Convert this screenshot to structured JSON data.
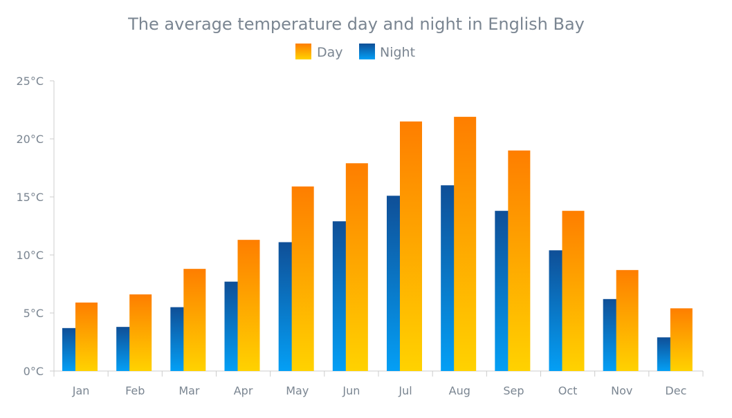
{
  "chart_data": {
    "type": "bar",
    "title": "The average temperature day and night in English Bay",
    "categories": [
      "Jan",
      "Feb",
      "Mar",
      "Apr",
      "May",
      "Jun",
      "Jul",
      "Aug",
      "Sep",
      "Oct",
      "Nov",
      "Dec"
    ],
    "series": [
      {
        "name": "Night",
        "values": [
          3.7,
          3.8,
          5.5,
          7.7,
          11.1,
          12.9,
          15.1,
          16.0,
          13.8,
          10.4,
          6.2,
          2.9
        ],
        "color_top": "#0f4f97",
        "color_bottom": "#049ff5"
      },
      {
        "name": "Day",
        "values": [
          5.9,
          6.6,
          8.8,
          11.3,
          15.9,
          17.9,
          21.5,
          21.9,
          19.0,
          13.8,
          8.7,
          5.4
        ],
        "color_top": "#fe7e00",
        "color_bottom": "#ffd200"
      }
    ],
    "ylim": [
      0,
      25
    ],
    "yticks": [
      0,
      5,
      10,
      15,
      20,
      25
    ],
    "ytick_labels": [
      "0°C",
      "5°C",
      "10°C",
      "15°C",
      "20°C",
      "25°C"
    ],
    "xlabel": "",
    "ylabel": "",
    "grid": false,
    "legend": {
      "position": "top-center",
      "items": [
        {
          "label": "Day",
          "color": "#fe7e00"
        },
        {
          "label": "Night",
          "color": "#0f4f97"
        }
      ]
    }
  }
}
